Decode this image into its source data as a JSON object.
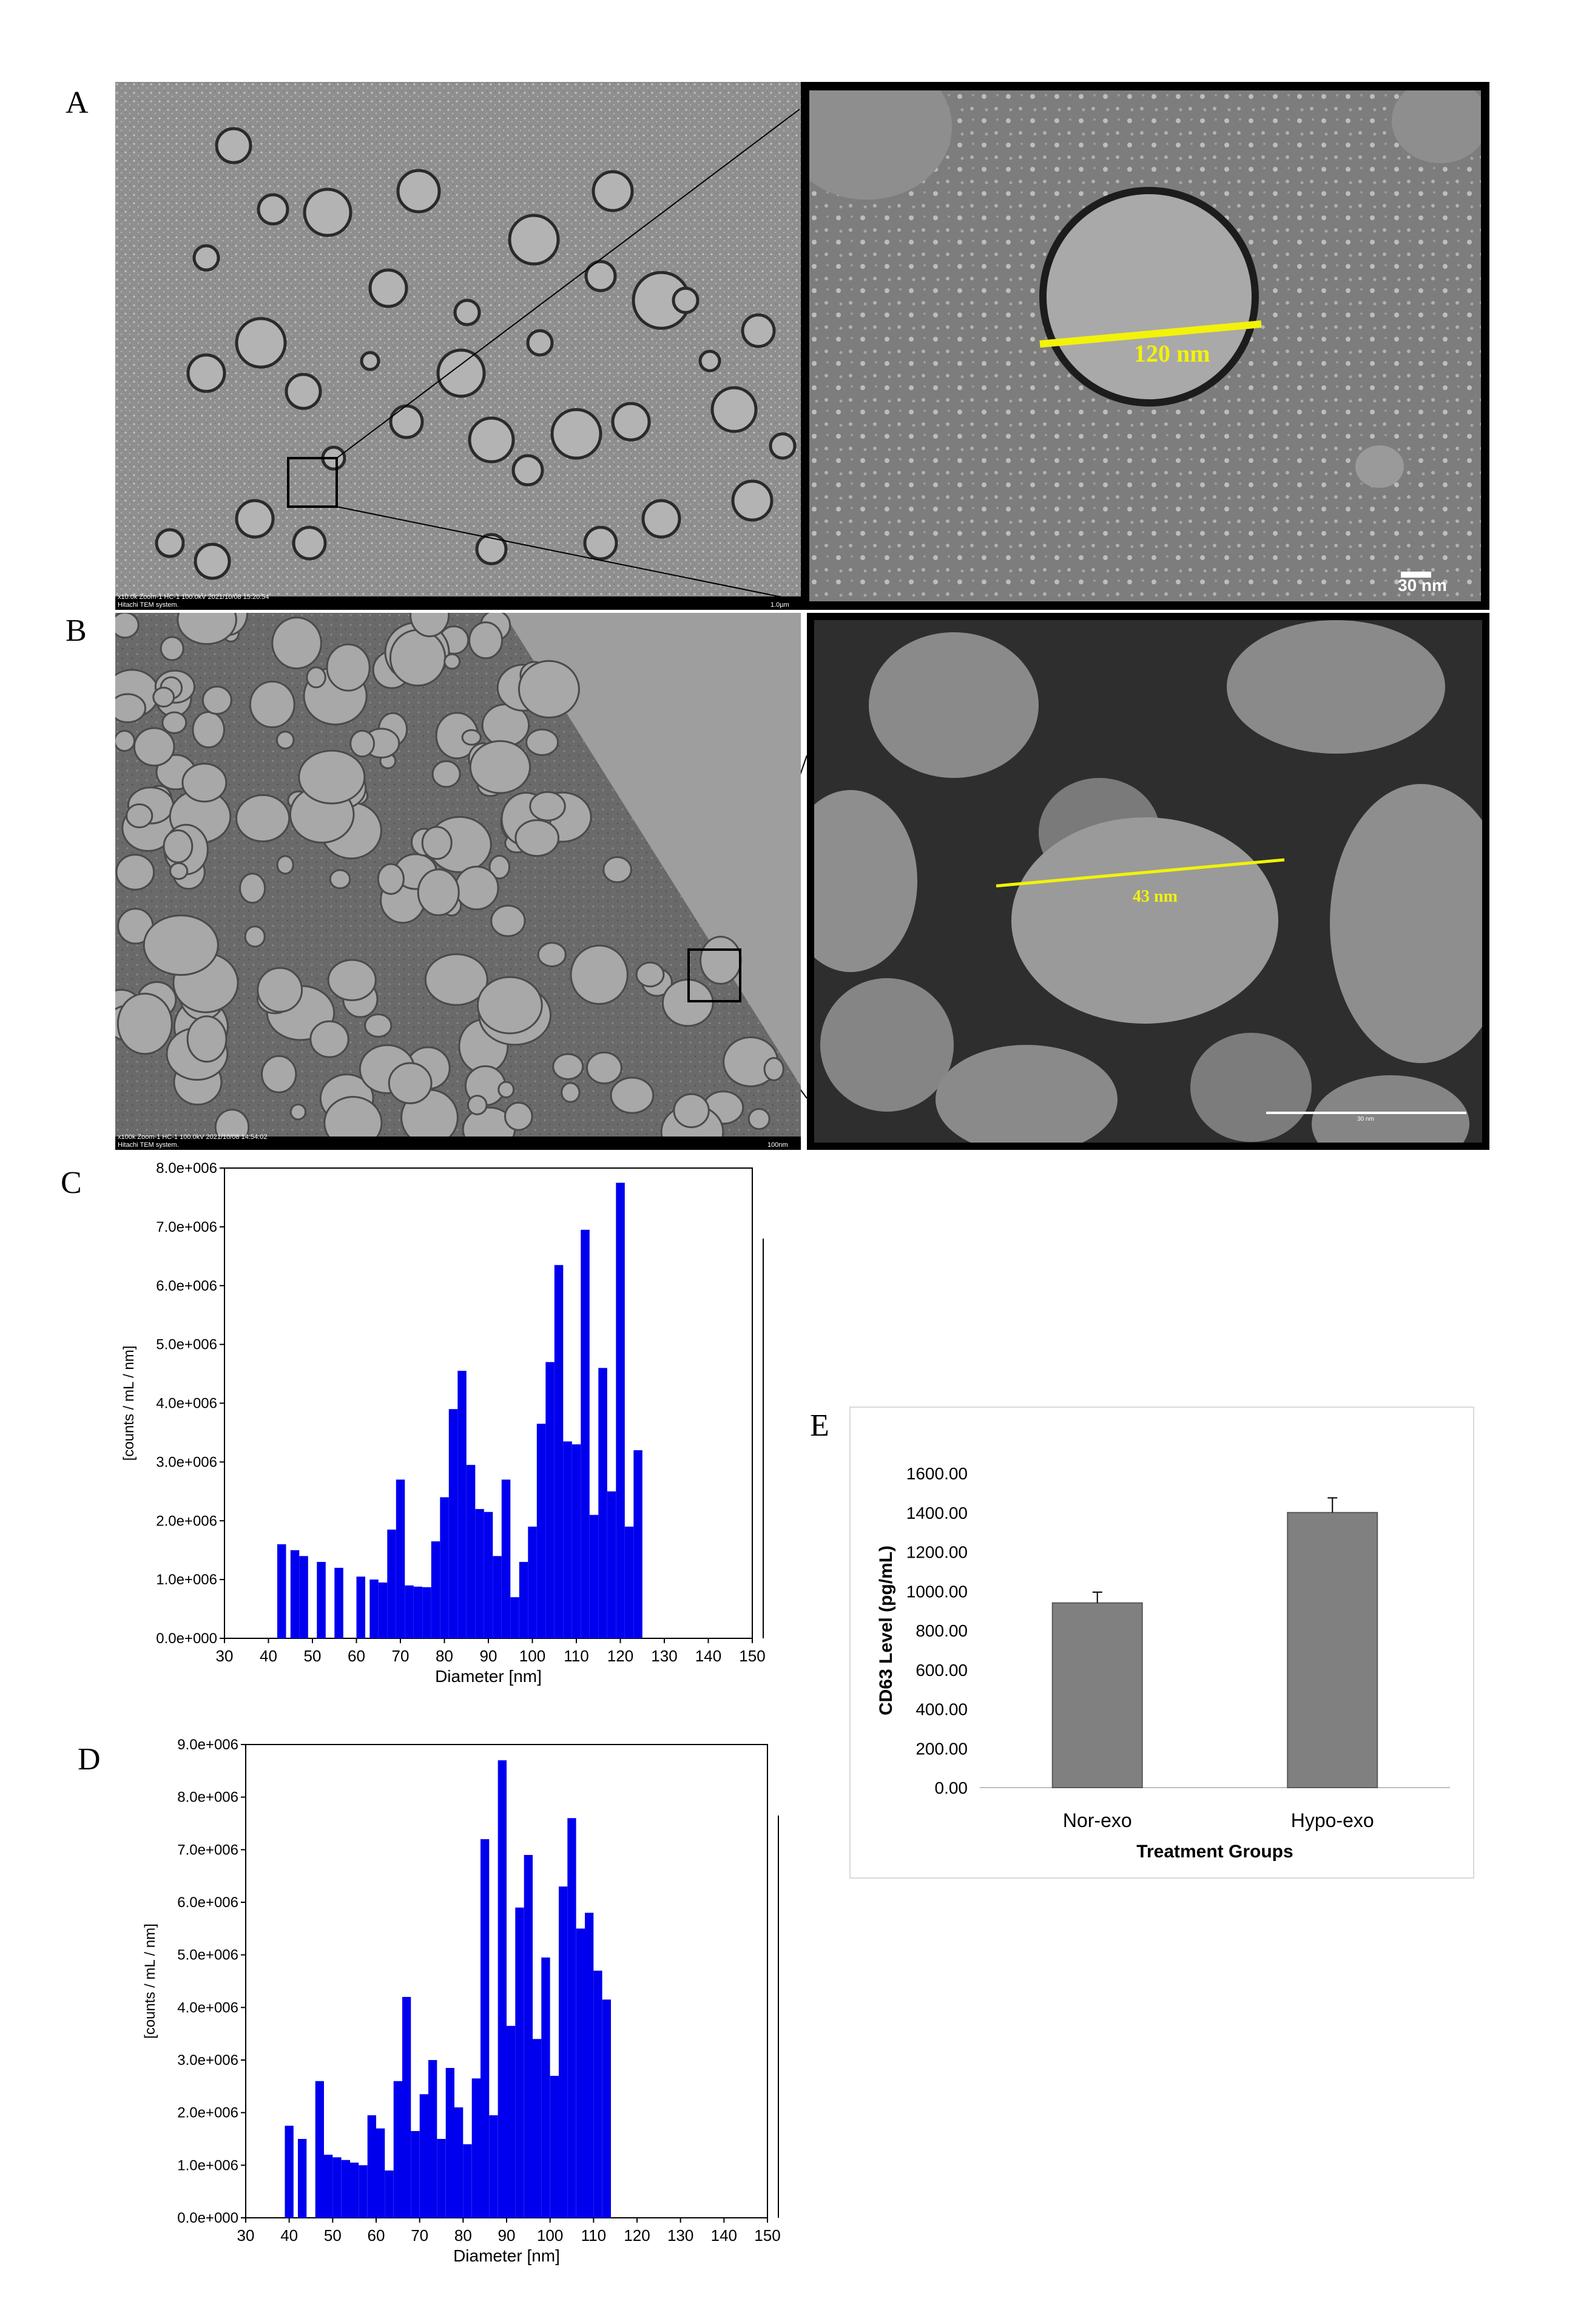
{
  "panels": {
    "A": {
      "label": "A",
      "meta_line1": "x10.0k Zoom-1 HC-1 100.0kV 2021/10/08 15:20:54",
      "meta_line2": "Hitachi TEM system.",
      "scale_main": "1.0µm",
      "measure": "120 nm",
      "scale_zoom": "30 nm"
    },
    "B": {
      "label": "B",
      "meta_line1": "x100k Zoom-1 HC-1 100.0kV 2021/10/08 14:54:02",
      "meta_line2": "Hitachi TEM system.",
      "scale_main": "100nm",
      "measure": "43 nm",
      "scale_zoom": "30 nm"
    },
    "C": {
      "label": "C"
    },
    "D": {
      "label": "D"
    },
    "E": {
      "label": "E"
    }
  },
  "chart_data": [
    {
      "panel": "C",
      "type": "bar",
      "xlabel": "Diameter [nm]",
      "ylabel": "[counts / mL / nm]",
      "xlim": [
        30,
        150
      ],
      "ylim": [
        0,
        8000000
      ],
      "xticks": [
        30,
        40,
        50,
        60,
        70,
        80,
        90,
        100,
        110,
        120,
        130,
        140,
        150
      ],
      "yticks": [
        "0.0e+000",
        "1.0e+006",
        "2.0e+006",
        "3.0e+006",
        "4.0e+006",
        "5.0e+006",
        "6.0e+006",
        "7.0e+006",
        "8.0e+006"
      ],
      "color": "#0000ee",
      "bars": [
        [
          43,
          1600000.0
        ],
        [
          46,
          1500000.0
        ],
        [
          48,
          1400000.0
        ],
        [
          52,
          1300000.0
        ],
        [
          56,
          1200000.0
        ],
        [
          61,
          1050000.0
        ],
        [
          64,
          1000000.0
        ],
        [
          66,
          950000.0
        ],
        [
          68,
          1850000.0
        ],
        [
          70,
          2700000.0
        ],
        [
          72,
          900000.0
        ],
        [
          74,
          880000.0
        ],
        [
          76,
          870000.0
        ],
        [
          78,
          1650000.0
        ],
        [
          80,
          2400000.0
        ],
        [
          82,
          3900000.0
        ],
        [
          84,
          4550000.0
        ],
        [
          86,
          2950000.0
        ],
        [
          88,
          2200000.0
        ],
        [
          90,
          2150000.0
        ],
        [
          92,
          1400000.0
        ],
        [
          94,
          2700000.0
        ],
        [
          96,
          700000.0
        ],
        [
          98,
          1300000.0
        ],
        [
          100,
          1900000.0
        ],
        [
          102,
          3650000.0
        ],
        [
          104,
          4700000.0
        ],
        [
          106,
          6350000.0
        ],
        [
          108,
          3350000.0
        ],
        [
          110,
          3300000.0
        ],
        [
          112,
          6950000.0
        ],
        [
          114,
          2100000.0
        ],
        [
          116,
          4600000.0
        ],
        [
          118,
          2500000.0
        ],
        [
          120,
          7750000.0
        ],
        [
          122,
          1900000.0
        ],
        [
          124,
          3200000.0
        ]
      ]
    },
    {
      "panel": "D",
      "type": "bar",
      "xlabel": "Diameter [nm]",
      "ylabel": "[counts / mL / nm]",
      "xlim": [
        30,
        150
      ],
      "ylim": [
        0,
        9000000
      ],
      "xticks": [
        30,
        40,
        50,
        60,
        70,
        80,
        90,
        100,
        110,
        120,
        130,
        140,
        150
      ],
      "yticks": [
        "0.0e+000",
        "1.0e+006",
        "2.0e+006",
        "3.0e+006",
        "4.0e+006",
        "5.0e+006",
        "6.0e+006",
        "7.0e+006",
        "8.0e+006",
        "9.0e+006"
      ],
      "color": "#0000ee",
      "bars": [
        [
          40,
          1750000.0
        ],
        [
          43,
          1500000.0
        ],
        [
          47,
          2600000.0
        ],
        [
          49,
          1200000.0
        ],
        [
          51,
          1150000.0
        ],
        [
          53,
          1100000.0
        ],
        [
          55,
          1050000.0
        ],
        [
          57,
          1000000.0
        ],
        [
          59,
          1950000.0
        ],
        [
          61,
          1700000.0
        ],
        [
          63,
          900000.0
        ],
        [
          65,
          2600000.0
        ],
        [
          67,
          4200000.0
        ],
        [
          69,
          1650000.0
        ],
        [
          71,
          2350000.0
        ],
        [
          73,
          3000000.0
        ],
        [
          75,
          1500000.0
        ],
        [
          77,
          2850000.0
        ],
        [
          79,
          2100000.0
        ],
        [
          81,
          1400000.0
        ],
        [
          83,
          2650000.0
        ],
        [
          85,
          7200000.0
        ],
        [
          87,
          1950000.0
        ],
        [
          89,
          8700000.0
        ],
        [
          91,
          3650000.0
        ],
        [
          93,
          5900000.0
        ],
        [
          95,
          6900000.0
        ],
        [
          97,
          3400000.0
        ],
        [
          99,
          4950000.0
        ],
        [
          101,
          2700000.0
        ],
        [
          103,
          6300000.0
        ],
        [
          105,
          7600000.0
        ],
        [
          107,
          5500000.0
        ],
        [
          109,
          5800000.0
        ],
        [
          111,
          4700000.0
        ],
        [
          113,
          4150000.0
        ]
      ]
    },
    {
      "panel": "E",
      "type": "bar",
      "xlabel": "Treatment Groups",
      "ylabel": "CD63 Level (pg/mL)",
      "ylim": [
        0,
        1600
      ],
      "yticks": [
        "0.00",
        "200.00",
        "400.00",
        "600.00",
        "800.00",
        "1000.00",
        "1200.00",
        "1400.00",
        "1600.00"
      ],
      "categories": [
        "Nor-exo",
        "Hypo-exo"
      ],
      "values": [
        940,
        1400
      ],
      "errors": [
        55,
        75
      ],
      "color": "#808080"
    }
  ]
}
